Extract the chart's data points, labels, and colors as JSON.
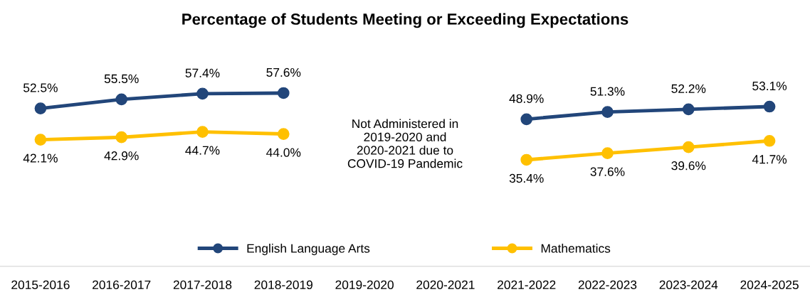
{
  "chart_data": {
    "type": "line",
    "title": "Percentage of Students Meeting or Exceeding Expectations",
    "categories": [
      "2015-2016",
      "2016-2017",
      "2017-2018",
      "2018-2019",
      "2019-2020",
      "2020-2021",
      "2021-2022",
      "2022-2023",
      "2023-2024",
      "2024-2025"
    ],
    "series": [
      {
        "name": "English Language Arts",
        "color": "#22467a",
        "values": [
          52.5,
          55.5,
          57.4,
          57.6,
          null,
          null,
          48.9,
          51.3,
          52.2,
          53.1
        ],
        "value_labels": [
          "52.5%",
          "55.5%",
          "57.4%",
          "57.6%",
          null,
          null,
          "48.9%",
          "51.3%",
          "52.2%",
          "53.1%"
        ]
      },
      {
        "name": "Mathematics",
        "color": "#ffc000",
        "values": [
          42.1,
          42.9,
          44.7,
          44.0,
          null,
          null,
          35.4,
          37.6,
          39.6,
          41.7
        ],
        "value_labels": [
          "42.1%",
          "42.9%",
          "44.7%",
          "44.0%",
          null,
          null,
          "35.4%",
          "37.6%",
          "39.6%",
          "41.7%"
        ]
      }
    ],
    "annotations": [
      "Not Administered in\n2019-2020 and\n2020-2021 due to\nCOVID-19 Pandemic"
    ],
    "marker": "circle",
    "line_style": "solid",
    "grid": false,
    "legend": "bottom"
  }
}
